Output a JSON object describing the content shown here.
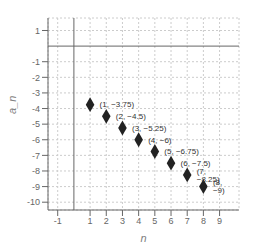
{
  "chart_data": {
    "type": "scatter",
    "x": [
      1,
      2,
      3,
      4,
      5,
      6,
      7,
      8
    ],
    "values": [
      -3.75,
      -4.5,
      -5.25,
      -6,
      -6.75,
      -7.5,
      -8.25,
      -9
    ],
    "value_labels": [
      "(1, −3.75)",
      "(2, −4.5)",
      "(3, −5.25)",
      "(4, −6)",
      "(5, −6.75)",
      "(6, −7.5)",
      "(7, −8.25)",
      "(8, −9)"
    ],
    "data_labels": true,
    "xlabel": "n",
    "ylabel": "a_n",
    "xlim": [
      -1.6,
      10.2
    ],
    "ylim": [
      -10.5,
      1.8
    ],
    "xticks": [
      -1,
      1,
      2,
      3,
      4,
      5,
      6,
      7,
      8,
      9
    ],
    "yticks": [
      -10,
      -9,
      -8,
      -7,
      -6,
      -5,
      -4,
      -3,
      -2,
      -1,
      1
    ],
    "grid": true,
    "color": "#222222",
    "marker": "diamond"
  }
}
